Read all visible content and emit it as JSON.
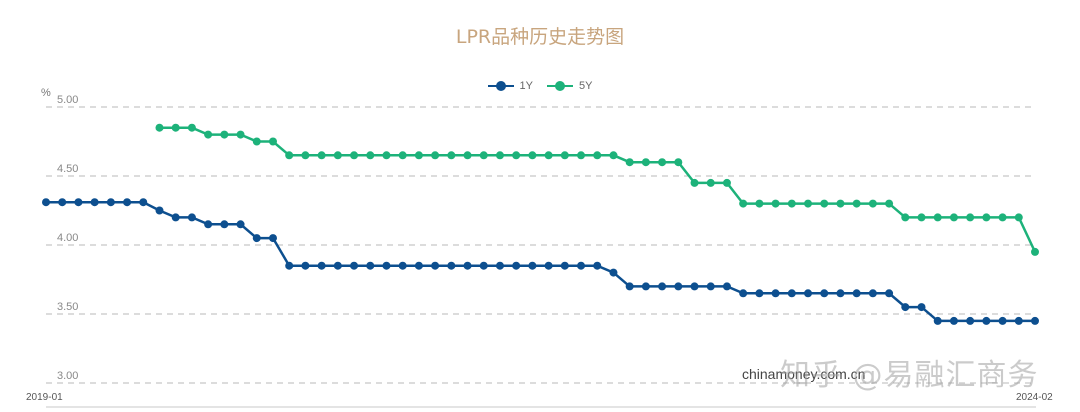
{
  "title": "LPR品种历史走势图",
  "unit": "%",
  "legend": [
    {
      "label": "1Y",
      "color": "#0d4f8f"
    },
    {
      "label": "5Y",
      "color": "#1db27a"
    }
  ],
  "x_start_label": "2019-01",
  "x_end_label": "2024-02",
  "source_watermark": "chinamoney.com.cn",
  "zhihu_watermark": "知乎 @易融汇商务",
  "chart_data": {
    "type": "line",
    "title": "LPR品种历史走势图",
    "xlabel": "",
    "ylabel": "%",
    "ylim": [
      3.0,
      5.0
    ],
    "yticks": [
      "5.00",
      "4.50",
      "4.00",
      "3.50",
      "3.00"
    ],
    "grid": true,
    "legend_position": "top",
    "x": [
      "2019-01",
      "2019-02",
      "2019-03",
      "2019-04",
      "2019-05",
      "2019-06",
      "2019-07",
      "2019-08",
      "2019-09",
      "2019-10",
      "2019-11",
      "2019-12",
      "2020-01",
      "2020-02",
      "2020-03",
      "2020-04",
      "2020-05",
      "2020-06",
      "2020-07",
      "2020-08",
      "2020-09",
      "2020-10",
      "2020-11",
      "2020-12",
      "2021-01",
      "2021-02",
      "2021-03",
      "2021-04",
      "2021-05",
      "2021-06",
      "2021-07",
      "2021-08",
      "2021-09",
      "2021-10",
      "2021-11",
      "2021-12",
      "2022-01",
      "2022-02",
      "2022-03",
      "2022-04",
      "2022-05",
      "2022-06",
      "2022-07",
      "2022-08",
      "2022-09",
      "2022-10",
      "2022-11",
      "2022-12",
      "2023-01",
      "2023-02",
      "2023-03",
      "2023-04",
      "2023-05",
      "2023-06",
      "2023-07",
      "2023-08",
      "2023-09",
      "2023-10",
      "2023-11",
      "2023-12",
      "2024-01",
      "2024-02"
    ],
    "series": [
      {
        "name": "1Y",
        "color": "#0d4f8f",
        "values": [
          4.31,
          4.31,
          4.31,
          4.31,
          4.31,
          4.31,
          4.31,
          4.25,
          4.2,
          4.2,
          4.15,
          4.15,
          4.15,
          4.05,
          4.05,
          3.85,
          3.85,
          3.85,
          3.85,
          3.85,
          3.85,
          3.85,
          3.85,
          3.85,
          3.85,
          3.85,
          3.85,
          3.85,
          3.85,
          3.85,
          3.85,
          3.85,
          3.85,
          3.85,
          3.85,
          3.8,
          3.7,
          3.7,
          3.7,
          3.7,
          3.7,
          3.7,
          3.7,
          3.65,
          3.65,
          3.65,
          3.65,
          3.65,
          3.65,
          3.65,
          3.65,
          3.65,
          3.65,
          3.55,
          3.55,
          3.45,
          3.45,
          3.45,
          3.45,
          3.45,
          3.45,
          3.45
        ]
      },
      {
        "name": "5Y",
        "color": "#1db27a",
        "values": [
          null,
          null,
          null,
          null,
          null,
          null,
          null,
          4.85,
          4.85,
          4.85,
          4.8,
          4.8,
          4.8,
          4.75,
          4.75,
          4.65,
          4.65,
          4.65,
          4.65,
          4.65,
          4.65,
          4.65,
          4.65,
          4.65,
          4.65,
          4.65,
          4.65,
          4.65,
          4.65,
          4.65,
          4.65,
          4.65,
          4.65,
          4.65,
          4.65,
          4.65,
          4.6,
          4.6,
          4.6,
          4.6,
          4.45,
          4.45,
          4.45,
          4.3,
          4.3,
          4.3,
          4.3,
          4.3,
          4.3,
          4.3,
          4.3,
          4.3,
          4.3,
          4.2,
          4.2,
          4.2,
          4.2,
          4.2,
          4.2,
          4.2,
          4.2,
          3.95
        ]
      }
    ]
  }
}
